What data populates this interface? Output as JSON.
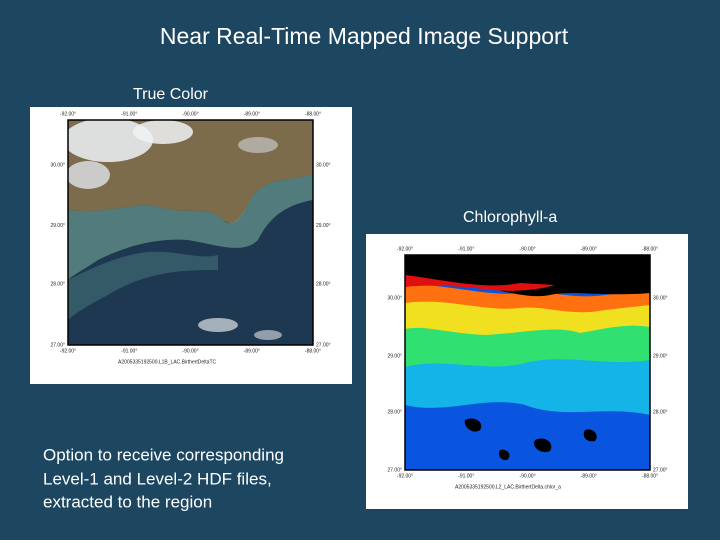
{
  "slide": {
    "title": "Near Real-Time Mapped Image Support",
    "caption": [
      "Option to receive corresponding",
      "Level-1 and Level-2 HDF files,",
      "extracted to the region"
    ],
    "maps": [
      {
        "label": "True Color",
        "lon_ticks": [
          "-92.00°",
          "-91.00°",
          "-90.00°",
          "-89.00°",
          "-88.00°"
        ],
        "lat_ticks": [
          "30.00°",
          "29.00°",
          "28.00°",
          "27.00°"
        ],
        "file": "A2005335192500.L1B_LAC.BirthertDeltaTC"
      },
      {
        "label": "Chlorophyll-a",
        "lon_ticks": [
          "-92.00°",
          "-91.00°",
          "-90.00°",
          "-89.00°",
          "-88.00°"
        ],
        "lat_ticks": [
          "30.00°",
          "29.00°",
          "28.00°",
          "27.00°"
        ],
        "file": "A2005335192500.L2_LAC.BirthertDelta.chlor_a"
      }
    ]
  }
}
